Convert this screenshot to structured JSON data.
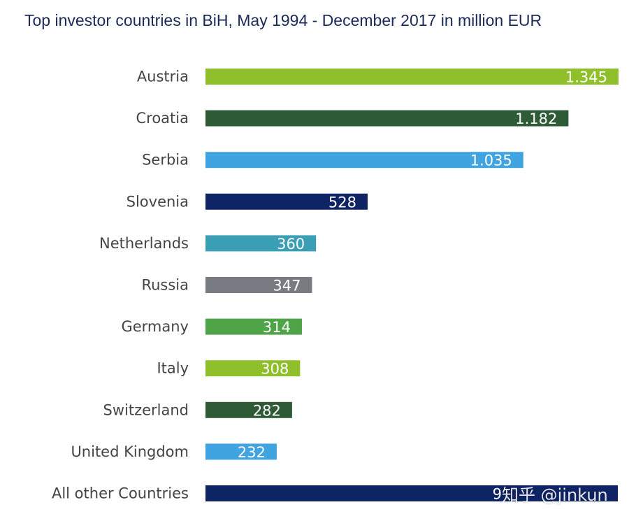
{
  "title": "Top investor countries in BiH, May 1994 - December 2017 in million EUR",
  "watermark": "知乎 @jinkun",
  "chart_data": {
    "type": "bar",
    "orientation": "horizontal",
    "title": "Top investor countries in BiH, May 1994 - December 2017 in million EUR",
    "categories": [
      "Austria",
      "Croatia",
      "Serbia",
      "Slovenia",
      "Netherlands",
      "Russia",
      "Germany",
      "Italy",
      "Switzerland",
      "United Kingdom",
      "All other Countries"
    ],
    "values": [
      1345,
      1182,
      1035,
      528,
      360,
      347,
      314,
      308,
      282,
      232,
      9
    ],
    "value_labels": [
      "1.345",
      "1.182",
      "1.035",
      "528",
      "360",
      "347",
      "314",
      "308",
      "282",
      "232",
      "9"
    ],
    "colors": [
      "#8fc02c",
      "#2e5a35",
      "#40a4e0",
      "#0f2465",
      "#3a9fb4",
      "#787c82",
      "#4ea447",
      "#8fc02c",
      "#2e5a35",
      "#40a4e0",
      "#0f2465"
    ],
    "xlim": [
      0,
      1345
    ],
    "grid": false,
    "legend": "none"
  }
}
